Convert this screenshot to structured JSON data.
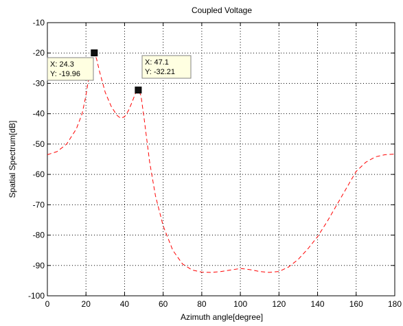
{
  "chart_data": {
    "type": "line",
    "title": "Coupled Voltage",
    "xlabel": "Azimuth angle[degree]",
    "ylabel": "Spatial Spectrum[dB]",
    "xlim": [
      0,
      180
    ],
    "ylim": [
      -100,
      -10
    ],
    "xticks": [
      0,
      20,
      40,
      60,
      80,
      100,
      120,
      140,
      160,
      180
    ],
    "yticks": [
      -10,
      -20,
      -30,
      -40,
      -50,
      -60,
      -70,
      -80,
      -90,
      -100
    ],
    "grid": true,
    "series": [
      {
        "name": "",
        "color": "#ff0000",
        "line_style": "dashed",
        "x": [
          0,
          5,
          10,
          15,
          18,
          20,
          22,
          23,
          24.3,
          25.5,
          27,
          30,
          33,
          36,
          38,
          40,
          42,
          44,
          45.5,
          47.1,
          48.5,
          50,
          53,
          56,
          60,
          65,
          70,
          75,
          80,
          85,
          90,
          95,
          100,
          103,
          106,
          110,
          115,
          120,
          125,
          130,
          135,
          140,
          145,
          150,
          155,
          160,
          165,
          170,
          175,
          180
        ],
        "y": [
          -53.5,
          -52.5,
          -50,
          -45,
          -40,
          -34,
          -26,
          -22,
          -19.96,
          -22,
          -26,
          -33,
          -37.5,
          -40.5,
          -41.5,
          -41,
          -39,
          -36,
          -33.5,
          -32.21,
          -34,
          -41,
          -56,
          -67,
          -77,
          -85,
          -89.5,
          -91.5,
          -92.2,
          -92.3,
          -92,
          -91.5,
          -91,
          -91.2,
          -91.5,
          -92,
          -92.3,
          -92,
          -90.5,
          -88,
          -84.5,
          -80.5,
          -75.5,
          -70,
          -64.5,
          -59,
          -56,
          -54.2,
          -53.5,
          -53.3
        ]
      }
    ],
    "datatips": [
      {
        "x": 24.3,
        "y": -19.96,
        "line1": "X: 24.3",
        "line2": "Y: -19.96"
      },
      {
        "x": 47.1,
        "y": -32.21,
        "line1": "X: 47.1",
        "line2": "Y: -32.21"
      }
    ]
  }
}
